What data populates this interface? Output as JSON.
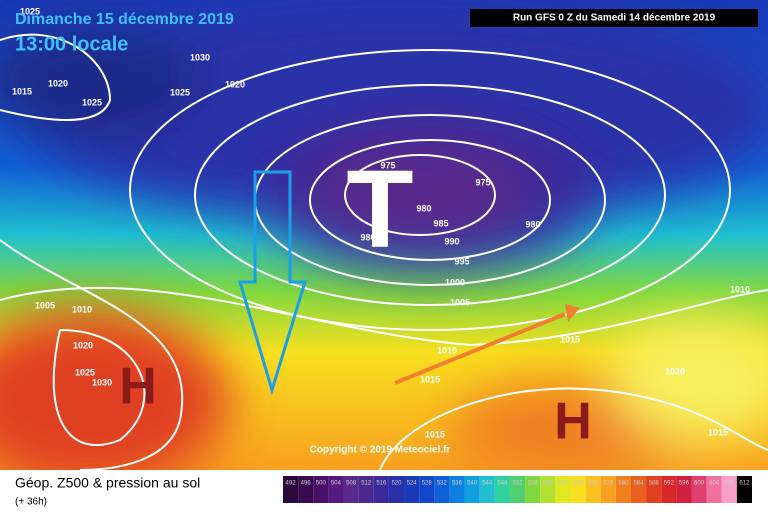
{
  "header": {
    "date": "Dimanche 15 décembre 2019",
    "time": "13:00 locale",
    "run": "Run GFS 0 Z du Samedi 14 décembre 2019"
  },
  "map": {
    "pressure_labels": [
      "1025",
      "1030",
      "1020",
      "1015",
      "1025",
      "1025",
      "1020",
      "975",
      "975",
      "980",
      "985",
      "980",
      "980",
      "990",
      "995",
      "1000",
      "1005",
      "1010",
      "1015",
      "1015",
      "1010",
      "1020",
      "1015",
      "1015",
      "1020",
      "1025",
      "1030",
      "1010",
      "1005"
    ],
    "highs": [
      "H",
      "H"
    ],
    "low": "T",
    "copyright": "Copyright © 2019 Meteociel.fr"
  },
  "footer": {
    "title": "Géop. Z500 & pression au sol",
    "lead": "(+ 36h)",
    "scale": [
      492,
      496,
      500,
      504,
      508,
      512,
      516,
      520,
      524,
      528,
      532,
      536,
      540,
      544,
      548,
      552,
      556,
      560,
      564,
      568,
      572,
      576,
      580,
      584,
      588,
      592,
      596,
      600,
      604,
      608,
      612
    ],
    "scale_colors": [
      "#2a0a3a",
      "#3a0a50",
      "#4a1068",
      "#551a80",
      "#5a2a8a",
      "#4a2a90",
      "#3a2a9a",
      "#2a30a8",
      "#1a3ab8",
      "#1048c8",
      "#1060d8",
      "#1080e0",
      "#10a0e0",
      "#20c0d0",
      "#30d0a0",
      "#50d070",
      "#80d840",
      "#b0e030",
      "#e0e820",
      "#f8e020",
      "#f8c020",
      "#f8a020",
      "#f08020",
      "#e86020",
      "#e04020",
      "#d82828",
      "#d02040",
      "#e04070",
      "#f070a0",
      "#f8a0c8",
      "#000000"
    ]
  }
}
